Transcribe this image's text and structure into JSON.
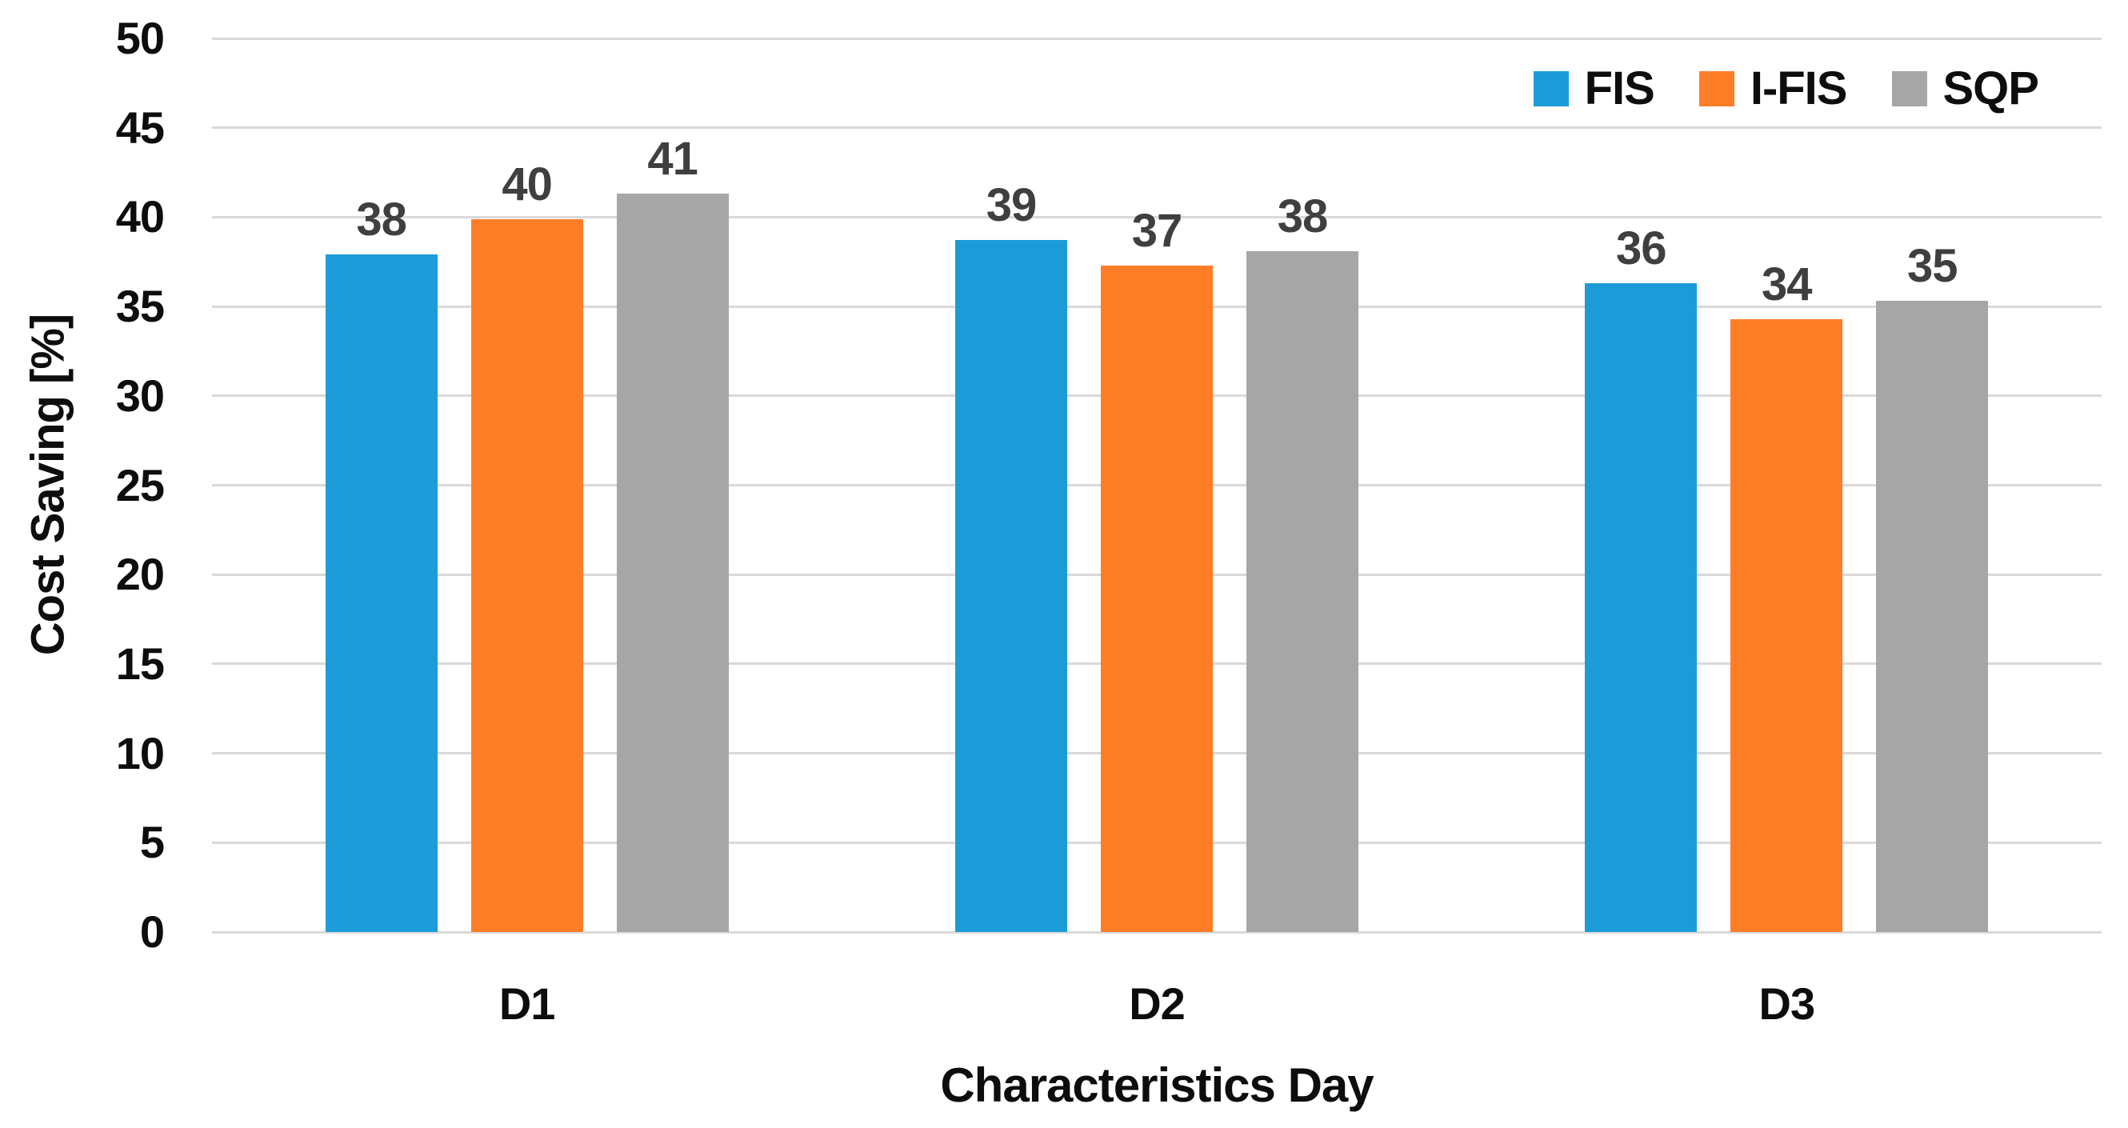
{
  "chart_data": {
    "type": "bar",
    "title": "",
    "categories": [
      "D1",
      "D2",
      "D3"
    ],
    "series": [
      {
        "name": "FIS",
        "color": "#1b9cd8",
        "values": [
          38,
          39,
          36
        ],
        "precise": [
          37.9,
          38.7,
          36.3
        ]
      },
      {
        "name": "I-FIS",
        "color": "#ff7d27",
        "values": [
          40,
          37,
          34
        ],
        "precise": [
          39.9,
          37.3,
          34.3
        ]
      },
      {
        "name": "SQP",
        "color": "#a6a6a6",
        "values": [
          41,
          38,
          35
        ],
        "precise": [
          41.3,
          38.1,
          35.3
        ]
      }
    ],
    "xlabel": "Characteristics Day",
    "ylabel": "Cost Saving [%]",
    "ylim": [
      0,
      50
    ],
    "yticks": [
      0,
      5,
      10,
      15,
      20,
      25,
      30,
      35,
      40,
      45,
      50
    ],
    "grid": true,
    "legend_position": "top-right",
    "colors": {
      "background": "#ffffff",
      "gridline": "#d9d9d9",
      "data_label": "#3f3f3f",
      "axis_text": "#0d0d0d"
    }
  }
}
